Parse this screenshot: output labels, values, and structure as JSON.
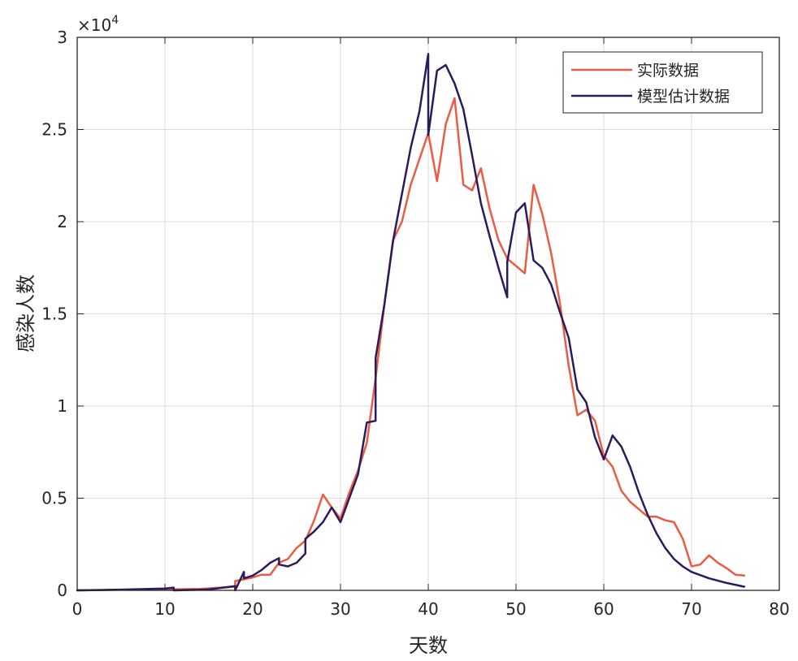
{
  "chart_data": {
    "type": "line",
    "xlabel": "天数",
    "ylabel": "感染人数",
    "y_exponent_label": "×10",
    "y_exponent_power": "4",
    "xlim": [
      0,
      80
    ],
    "ylim": [
      0,
      30000
    ],
    "x_ticks": [
      "0",
      "10",
      "20",
      "30",
      "40",
      "50",
      "60",
      "70",
      "80"
    ],
    "x_tick_values": [
      0,
      10,
      20,
      30,
      40,
      50,
      60,
      70,
      80
    ],
    "y_ticks": [
      "0",
      "0.5",
      "1",
      "1.5",
      "2",
      "2.5",
      "3"
    ],
    "y_tick_values": [
      0,
      5000,
      10000,
      15000,
      20000,
      25000,
      30000
    ],
    "grid": true,
    "legend_position": "top-right",
    "series": [
      {
        "name": "实际数据",
        "color": "#ea5c43",
        "points": [
          [
            0,
            0
          ],
          [
            5,
            30
          ],
          [
            10,
            50
          ],
          [
            14,
            80
          ],
          [
            18,
            200
          ],
          [
            18,
            500
          ],
          [
            19,
            600
          ],
          [
            20,
            700
          ],
          [
            21,
            850
          ],
          [
            22,
            850
          ],
          [
            23,
            1500
          ],
          [
            24,
            1700
          ],
          [
            25,
            2300
          ],
          [
            26,
            2700
          ],
          [
            27,
            3800
          ],
          [
            28,
            5200
          ],
          [
            29,
            4500
          ],
          [
            30,
            3900
          ],
          [
            31,
            5300
          ],
          [
            32,
            6500
          ],
          [
            33,
            8000
          ],
          [
            34,
            11500
          ],
          [
            35,
            15500
          ],
          [
            36,
            19000
          ],
          [
            37,
            20000
          ],
          [
            38,
            22000
          ],
          [
            40,
            24800
          ],
          [
            41,
            22200
          ],
          [
            42,
            25300
          ],
          [
            43,
            26700
          ],
          [
            44,
            22000
          ],
          [
            45,
            21700
          ],
          [
            46,
            22900
          ],
          [
            47,
            20700
          ],
          [
            48,
            19000
          ],
          [
            49,
            18000
          ],
          [
            51,
            17200
          ],
          [
            52,
            22000
          ],
          [
            53,
            20400
          ],
          [
            54,
            18300
          ],
          [
            55,
            15600
          ],
          [
            56,
            12200
          ],
          [
            57,
            9500
          ],
          [
            58,
            9800
          ],
          [
            59,
            9200
          ],
          [
            60,
            7300
          ],
          [
            61,
            6700
          ],
          [
            62,
            5400
          ],
          [
            63,
            4800
          ],
          [
            64,
            4400
          ],
          [
            65,
            4000
          ],
          [
            66,
            4000
          ],
          [
            67,
            3800
          ],
          [
            68,
            3700
          ],
          [
            69,
            2800
          ],
          [
            70,
            1300
          ],
          [
            71,
            1400
          ],
          [
            72,
            1900
          ],
          [
            73,
            1500
          ],
          [
            74,
            1200
          ],
          [
            75,
            850
          ],
          [
            76,
            800
          ]
        ]
      },
      {
        "name": "模型估计数据",
        "color": "#2b1a5c",
        "points": [
          [
            0,
            0
          ],
          [
            5,
            40
          ],
          [
            10,
            100
          ],
          [
            11,
            150
          ],
          [
            11,
            0
          ],
          [
            15,
            50
          ],
          [
            18,
            230
          ],
          [
            18,
            0
          ],
          [
            19,
            1000
          ],
          [
            19,
            650
          ],
          [
            20,
            800
          ],
          [
            21,
            1100
          ],
          [
            22,
            1500
          ],
          [
            23,
            1750
          ],
          [
            23,
            1400
          ],
          [
            24,
            1300
          ],
          [
            25,
            1500
          ],
          [
            26,
            2000
          ],
          [
            26,
            2800
          ],
          [
            27,
            3200
          ],
          [
            28,
            3700
          ],
          [
            29,
            4500
          ],
          [
            30,
            3700
          ],
          [
            32,
            6300
          ],
          [
            33,
            9100
          ],
          [
            34,
            9200
          ],
          [
            34,
            12600
          ],
          [
            35,
            15500
          ],
          [
            36,
            19000
          ],
          [
            38,
            24000
          ],
          [
            39,
            26000
          ],
          [
            40,
            29100
          ],
          [
            40,
            24700
          ],
          [
            41,
            28200
          ],
          [
            42,
            28500
          ],
          [
            43,
            27500
          ],
          [
            44,
            26100
          ],
          [
            45,
            23600
          ],
          [
            46,
            21000
          ],
          [
            47,
            19200
          ],
          [
            48,
            17500
          ],
          [
            49,
            15900
          ],
          [
            49,
            17800
          ],
          [
            50,
            20500
          ],
          [
            51,
            21000
          ],
          [
            52,
            17900
          ],
          [
            53,
            17500
          ],
          [
            54,
            16600
          ],
          [
            55,
            15100
          ],
          [
            56,
            13700
          ],
          [
            57,
            10900
          ],
          [
            58,
            10200
          ],
          [
            59,
            8300
          ],
          [
            60,
            7100
          ],
          [
            61,
            8400
          ],
          [
            62,
            7800
          ],
          [
            63,
            6700
          ],
          [
            64,
            5300
          ],
          [
            65,
            4100
          ],
          [
            66,
            3100
          ],
          [
            67,
            2300
          ],
          [
            68,
            1700
          ],
          [
            69,
            1300
          ],
          [
            70,
            1000
          ],
          [
            72,
            650
          ],
          [
            74,
            400
          ],
          [
            76,
            200
          ]
        ]
      }
    ]
  }
}
